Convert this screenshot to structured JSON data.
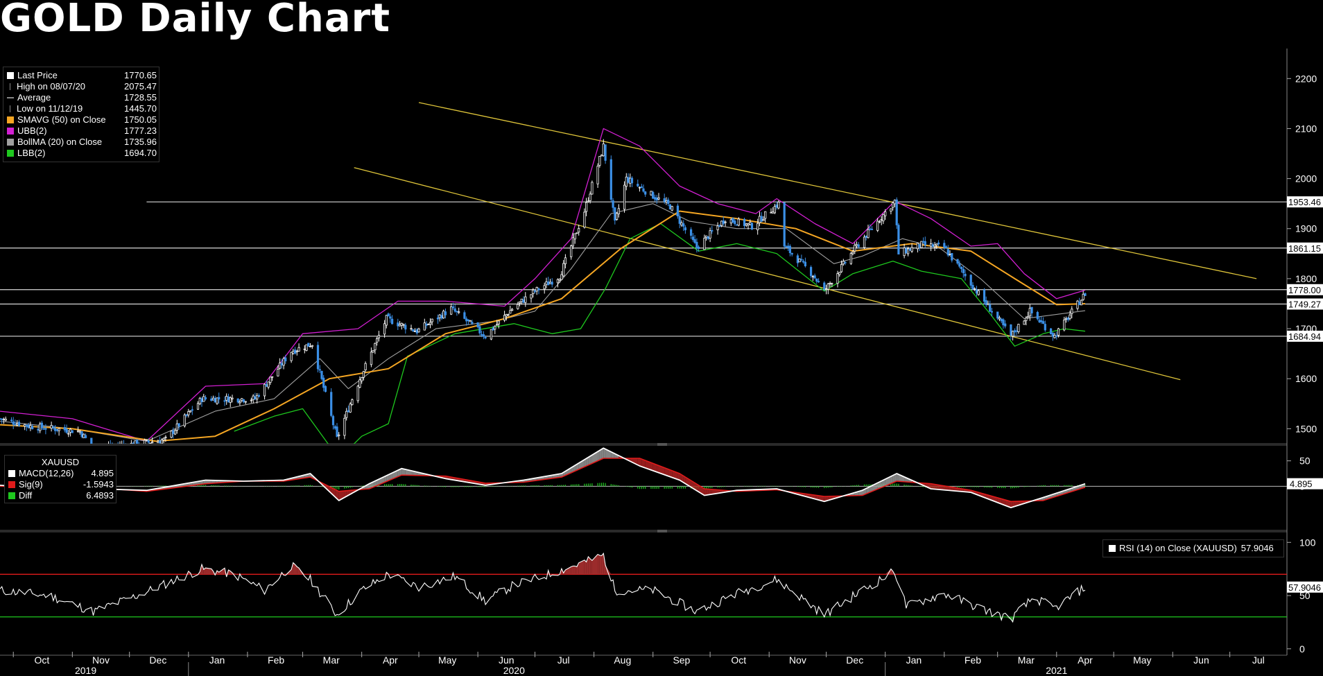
{
  "title": "GOLD Daily Chart",
  "colors": {
    "bg": "#000000",
    "bullish_candle": "#ffffff",
    "bearish_candle": "#3b8fe6",
    "sma50": "#f5a623",
    "ubb": "#d21fd2",
    "bollma": "#a0a0a0",
    "lbb": "#1ec81e",
    "trend": "#e0c63a",
    "hline": "#d8d8d8",
    "macd": "#ffffff",
    "signal": "#e01b1b",
    "diff": "#1ec81e",
    "rsi_upper": "#e01b1b",
    "rsi_lower": "#1ec81e"
  },
  "legend_main": [
    {
      "label": "Last Price",
      "value": "1770.65",
      "swatch": "#ffffff",
      "icon": "square-icon"
    },
    {
      "label": "High on 08/07/20",
      "value": "2075.47",
      "swatch": "",
      "icon": "high-marker-icon"
    },
    {
      "label": "Average",
      "value": "1728.55",
      "swatch": "",
      "icon": "average-marker-icon"
    },
    {
      "label": "Low on 11/12/19",
      "value": "1445.70",
      "swatch": "",
      "icon": "low-marker-icon"
    },
    {
      "label": "SMAVG (50)  on Close",
      "value": "1750.05",
      "swatch": "#f5a623",
      "icon": "square-icon"
    },
    {
      "label": "UBB(2)",
      "value": "1777.23",
      "swatch": "#d21fd2",
      "icon": "square-icon"
    },
    {
      "label": "BollMA (20)  on Close",
      "value": "1735.96",
      "swatch": "#a0a0a0",
      "icon": "square-icon"
    },
    {
      "label": "LBB(2)",
      "value": "1694.70",
      "swatch": "#1ec81e",
      "icon": "square-icon"
    }
  ],
  "legend_macd": {
    "header": "XAUUSD",
    "rows": [
      {
        "label": "MACD(12,26)",
        "value": "4.895",
        "swatch": "#ffffff"
      },
      {
        "label": "Sig(9)",
        "value": "-1.5943",
        "swatch": "#e01b1b"
      },
      {
        "label": "Diff",
        "value": "6.4893",
        "swatch": "#1ec81e"
      }
    ]
  },
  "legend_rsi": {
    "label": "RSI (14)  on Close (XAUUSD)",
    "value": "57.9046",
    "swatch": "#ffffff"
  },
  "chart_data": [
    {
      "type": "candlestick",
      "series_name": "XAUUSD",
      "ylim": [
        1470,
        2260
      ],
      "yticks": [
        1500,
        1600,
        1700,
        1800,
        1900,
        2000,
        2100,
        2200
      ],
      "x_range": [
        "2019-09-24",
        "2021-07-31"
      ],
      "months": [
        "Oct",
        "Nov",
        "Dec",
        "Jan",
        "Feb",
        "Mar",
        "Apr",
        "May",
        "Jun",
        "Jul",
        "Aug",
        "Sep",
        "Oct",
        "Nov",
        "Dec",
        "Jan",
        "Feb",
        "Mar",
        "Apr",
        "May",
        "Jun",
        "Jul"
      ],
      "month_dates": [
        "2019-10-01",
        "2019-11-01",
        "2019-12-01",
        "2020-01-01",
        "2020-02-01",
        "2020-03-01",
        "2020-04-01",
        "2020-05-01",
        "2020-06-01",
        "2020-07-01",
        "2020-08-01",
        "2020-09-01",
        "2020-10-01",
        "2020-11-01",
        "2020-12-01",
        "2021-01-01",
        "2021-02-01",
        "2021-03-01",
        "2021-04-01",
        "2021-05-01",
        "2021-06-01",
        "2021-07-01"
      ],
      "years": [
        {
          "label": "2019",
          "date": "2019-11-08"
        },
        {
          "label": "2020",
          "date": "2020-06-20"
        },
        {
          "label": "2021",
          "date": "2021-04-01"
        }
      ],
      "year_dividers": [
        "2020-01-01",
        "2021-01-01"
      ],
      "price_anchors": [
        [
          "2019-09-24",
          1520
        ],
        [
          "2019-10-10",
          1505
        ],
        [
          "2019-11-05",
          1495
        ],
        [
          "2019-11-12",
          1460
        ],
        [
          "2019-12-05",
          1470
        ],
        [
          "2019-12-20",
          1478
        ],
        [
          "2020-01-08",
          1560
        ],
        [
          "2020-01-20",
          1560
        ],
        [
          "2020-02-05",
          1560
        ],
        [
          "2020-02-24",
          1655
        ],
        [
          "2020-03-06",
          1670
        ],
        [
          "2020-03-19",
          1480
        ],
        [
          "2020-03-31",
          1600
        ],
        [
          "2020-04-14",
          1720
        ],
        [
          "2020-04-30",
          1695
        ],
        [
          "2020-05-18",
          1740
        ],
        [
          "2020-06-05",
          1685
        ],
        [
          "2020-06-19",
          1740
        ],
        [
          "2020-07-01",
          1775
        ],
        [
          "2020-07-14",
          1805
        ],
        [
          "2020-07-27",
          1935
        ],
        [
          "2020-08-06",
          2065
        ],
        [
          "2020-08-12",
          1910
        ],
        [
          "2020-08-18",
          2000
        ],
        [
          "2020-08-31",
          1968
        ],
        [
          "2020-09-10",
          1945
        ],
        [
          "2020-09-24",
          1862
        ],
        [
          "2020-10-09",
          1920
        ],
        [
          "2020-10-23",
          1905
        ],
        [
          "2020-11-06",
          1950
        ],
        [
          "2020-11-09",
          1865
        ],
        [
          "2020-11-24",
          1808
        ],
        [
          "2020-11-30",
          1775
        ],
        [
          "2020-12-16",
          1860
        ],
        [
          "2021-01-06",
          1955
        ],
        [
          "2021-01-08",
          1850
        ],
        [
          "2021-01-20",
          1868
        ],
        [
          "2021-02-01",
          1862
        ],
        [
          "2021-02-18",
          1775
        ],
        [
          "2021-03-08",
          1685
        ],
        [
          "2021-03-18",
          1735
        ],
        [
          "2021-03-31",
          1685
        ],
        [
          "2021-04-16",
          1770
        ]
      ],
      "overlays": {
        "sma50": [
          [
            "2019-09-24",
            1508
          ],
          [
            "2019-11-01",
            1500
          ],
          [
            "2019-12-15",
            1475
          ],
          [
            "2020-01-15",
            1485
          ],
          [
            "2020-02-15",
            1540
          ],
          [
            "2020-03-15",
            1600
          ],
          [
            "2020-04-15",
            1620
          ],
          [
            "2020-05-15",
            1690
          ],
          [
            "2020-06-15",
            1720
          ],
          [
            "2020-07-15",
            1760
          ],
          [
            "2020-08-15",
            1860
          ],
          [
            "2020-09-15",
            1935
          ],
          [
            "2020-10-15",
            1920
          ],
          [
            "2020-11-15",
            1900
          ],
          [
            "2020-12-15",
            1855
          ],
          [
            "2021-01-15",
            1870
          ],
          [
            "2021-02-15",
            1855
          ],
          [
            "2021-03-10",
            1800
          ],
          [
            "2021-04-01",
            1748
          ],
          [
            "2021-04-16",
            1750
          ]
        ],
        "bollma": [
          [
            "2019-09-24",
            1515
          ],
          [
            "2019-11-01",
            1500
          ],
          [
            "2019-12-10",
            1475
          ],
          [
            "2020-01-15",
            1535
          ],
          [
            "2020-02-15",
            1560
          ],
          [
            "2020-03-10",
            1640
          ],
          [
            "2020-03-25",
            1580
          ],
          [
            "2020-04-15",
            1640
          ],
          [
            "2020-05-10",
            1700
          ],
          [
            "2020-06-10",
            1715
          ],
          [
            "2020-07-01",
            1735
          ],
          [
            "2020-07-20",
            1820
          ],
          [
            "2020-08-10",
            1930
          ],
          [
            "2020-09-01",
            1950
          ],
          [
            "2020-09-20",
            1915
          ],
          [
            "2020-10-15",
            1900
          ],
          [
            "2020-11-10",
            1900
          ],
          [
            "2020-12-05",
            1830
          ],
          [
            "2020-12-20",
            1845
          ],
          [
            "2021-01-10",
            1880
          ],
          [
            "2021-01-30",
            1860
          ],
          [
            "2021-02-20",
            1800
          ],
          [
            "2021-03-15",
            1720
          ],
          [
            "2021-04-16",
            1736
          ]
        ],
        "ubb": [
          [
            "2019-09-24",
            1535
          ],
          [
            "2019-11-01",
            1520
          ],
          [
            "2019-12-10",
            1475
          ],
          [
            "2020-01-10",
            1585
          ],
          [
            "2020-02-10",
            1590
          ],
          [
            "2020-03-01",
            1690
          ],
          [
            "2020-03-30",
            1700
          ],
          [
            "2020-04-20",
            1755
          ],
          [
            "2020-05-15",
            1755
          ],
          [
            "2020-06-15",
            1745
          ],
          [
            "2020-07-01",
            1800
          ],
          [
            "2020-07-20",
            1880
          ],
          [
            "2020-08-06",
            2100
          ],
          [
            "2020-08-25",
            2065
          ],
          [
            "2020-09-15",
            1985
          ],
          [
            "2020-10-05",
            1950
          ],
          [
            "2020-10-25",
            1930
          ],
          [
            "2020-11-05",
            1960
          ],
          [
            "2020-11-25",
            1910
          ],
          [
            "2020-12-15",
            1870
          ],
          [
            "2021-01-06",
            1955
          ],
          [
            "2021-01-25",
            1920
          ],
          [
            "2021-02-15",
            1865
          ],
          [
            "2021-03-01",
            1870
          ],
          [
            "2021-03-15",
            1810
          ],
          [
            "2021-04-01",
            1760
          ],
          [
            "2021-04-16",
            1777
          ]
        ],
        "lbb": [
          [
            "2020-01-25",
            1495
          ],
          [
            "2020-02-15",
            1525
          ],
          [
            "2020-03-01",
            1540
          ],
          [
            "2020-03-20",
            1440
          ],
          [
            "2020-04-01",
            1485
          ],
          [
            "2020-04-15",
            1510
          ],
          [
            "2020-04-25",
            1645
          ],
          [
            "2020-05-20",
            1690
          ],
          [
            "2020-06-20",
            1710
          ],
          [
            "2020-07-10",
            1690
          ],
          [
            "2020-07-25",
            1700
          ],
          [
            "2020-08-07",
            1780
          ],
          [
            "2020-08-20",
            1880
          ],
          [
            "2020-09-05",
            1910
          ],
          [
            "2020-09-25",
            1855
          ],
          [
            "2020-10-15",
            1870
          ],
          [
            "2020-11-05",
            1850
          ],
          [
            "2020-11-30",
            1775
          ],
          [
            "2020-12-15",
            1810
          ],
          [
            "2021-01-05",
            1835
          ],
          [
            "2021-01-20",
            1815
          ],
          [
            "2021-02-10",
            1800
          ],
          [
            "2021-02-25",
            1730
          ],
          [
            "2021-03-10",
            1665
          ],
          [
            "2021-03-25",
            1690
          ],
          [
            "2021-04-05",
            1700
          ],
          [
            "2021-04-16",
            1695
          ]
        ]
      },
      "trendlines": [
        {
          "from": [
            "2020-05-01",
            2152
          ],
          "to": [
            "2021-07-15",
            1800
          ]
        },
        {
          "from": [
            "2020-03-28",
            2022
          ],
          "to": [
            "2021-06-05",
            1598
          ]
        }
      ],
      "horizontal_lines": [
        {
          "value": 1953.46,
          "label": "1953.46",
          "from": "2019-12-10"
        },
        {
          "value": 1861.15,
          "label": "1861.15",
          "from": "2019-09-24"
        },
        {
          "value": 1778.0,
          "label": "1778.00",
          "from": "2019-09-24"
        },
        {
          "value": 1749.27,
          "label": "1749.27",
          "from": "2019-09-24"
        },
        {
          "value": 1684.94,
          "label": "1684.94",
          "from": "2019-09-24"
        }
      ]
    },
    {
      "type": "line",
      "name": "MACD",
      "ylim": [
        -80,
        70
      ],
      "yticks": [
        0,
        50
      ],
      "value_label": "4.895",
      "macd": [
        [
          "2019-09-24",
          2
        ],
        [
          "2019-10-20",
          -5
        ],
        [
          "2019-11-12",
          -5
        ],
        [
          "2019-12-10",
          -8
        ],
        [
          "2020-01-10",
          12
        ],
        [
          "2020-01-30",
          10
        ],
        [
          "2020-02-20",
          12
        ],
        [
          "2020-03-05",
          25
        ],
        [
          "2020-03-20",
          -28
        ],
        [
          "2020-04-05",
          5
        ],
        [
          "2020-04-22",
          35
        ],
        [
          "2020-05-15",
          15
        ],
        [
          "2020-06-05",
          2
        ],
        [
          "2020-06-25",
          12
        ],
        [
          "2020-07-15",
          25
        ],
        [
          "2020-08-06",
          75
        ],
        [
          "2020-08-25",
          40
        ],
        [
          "2020-09-15",
          12
        ],
        [
          "2020-09-28",
          -18
        ],
        [
          "2020-10-15",
          -8
        ],
        [
          "2020-11-05",
          -5
        ],
        [
          "2020-11-30",
          -30
        ],
        [
          "2020-12-20",
          -8
        ],
        [
          "2021-01-07",
          25
        ],
        [
          "2021-01-25",
          -5
        ],
        [
          "2021-02-15",
          -12
        ],
        [
          "2021-03-08",
          -42
        ],
        [
          "2021-03-25",
          -22
        ],
        [
          "2021-04-16",
          5
        ]
      ],
      "signal": [
        [
          "2019-09-24",
          0
        ],
        [
          "2019-10-20",
          -2
        ],
        [
          "2019-11-12",
          -3
        ],
        [
          "2019-12-10",
          -10
        ],
        [
          "2020-01-10",
          5
        ],
        [
          "2020-01-30",
          10
        ],
        [
          "2020-02-20",
          10
        ],
        [
          "2020-03-05",
          18
        ],
        [
          "2020-03-20",
          -10
        ],
        [
          "2020-04-05",
          -5
        ],
        [
          "2020-04-22",
          22
        ],
        [
          "2020-05-15",
          20
        ],
        [
          "2020-06-05",
          6
        ],
        [
          "2020-06-25",
          8
        ],
        [
          "2020-07-15",
          18
        ],
        [
          "2020-08-06",
          55
        ],
        [
          "2020-08-25",
          55
        ],
        [
          "2020-09-15",
          25
        ],
        [
          "2020-09-28",
          -5
        ],
        [
          "2020-10-15",
          -10
        ],
        [
          "2020-11-05",
          -7
        ],
        [
          "2020-11-30",
          -20
        ],
        [
          "2020-12-20",
          -18
        ],
        [
          "2021-01-07",
          10
        ],
        [
          "2021-01-25",
          5
        ],
        [
          "2021-02-15",
          -8
        ],
        [
          "2021-03-08",
          -30
        ],
        [
          "2021-03-25",
          -28
        ],
        [
          "2021-04-16",
          -2
        ]
      ]
    },
    {
      "type": "line",
      "name": "RSI (14)",
      "ylim": [
        -6,
        108
      ],
      "yticks": [
        0,
        50,
        100
      ],
      "overbought": 70,
      "oversold": 30,
      "value_label": "57.9046",
      "rsi": [
        [
          "2019-09-24",
          55
        ],
        [
          "2019-10-20",
          50
        ],
        [
          "2019-11-12",
          35
        ],
        [
          "2019-12-05",
          50
        ],
        [
          "2020-01-08",
          75
        ],
        [
          "2020-01-25",
          70
        ],
        [
          "2020-02-10",
          55
        ],
        [
          "2020-02-24",
          78
        ],
        [
          "2020-03-05",
          65
        ],
        [
          "2020-03-19",
          32
        ],
        [
          "2020-04-01",
          55
        ],
        [
          "2020-04-15",
          70
        ],
        [
          "2020-05-01",
          58
        ],
        [
          "2020-05-20",
          68
        ],
        [
          "2020-06-05",
          45
        ],
        [
          "2020-06-20",
          60
        ],
        [
          "2020-07-05",
          68
        ],
        [
          "2020-07-28",
          82
        ],
        [
          "2020-08-06",
          88
        ],
        [
          "2020-08-12",
          55
        ],
        [
          "2020-09-01",
          55
        ],
        [
          "2020-09-24",
          35
        ],
        [
          "2020-10-15",
          52
        ],
        [
          "2020-11-05",
          65
        ],
        [
          "2020-11-30",
          32
        ],
        [
          "2020-12-20",
          55
        ],
        [
          "2021-01-06",
          73
        ],
        [
          "2021-01-12",
          40
        ],
        [
          "2021-02-01",
          52
        ],
        [
          "2021-02-20",
          38
        ],
        [
          "2021-03-08",
          28
        ],
        [
          "2021-03-20",
          48
        ],
        [
          "2021-03-31",
          38
        ],
        [
          "2021-04-16",
          58
        ]
      ]
    }
  ]
}
